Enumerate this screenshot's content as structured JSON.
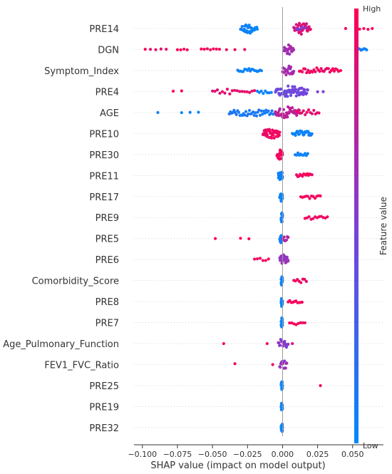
{
  "chart_data": {
    "type": "scatter",
    "subtype": "shap-beeswarm",
    "title": "",
    "xlabel": "SHAP value (impact on model output)",
    "ylabel": "",
    "xlim": [
      -0.106,
      0.072
    ],
    "xticks": [
      -0.1,
      -0.075,
      -0.05,
      -0.025,
      0.0,
      0.025,
      0.05
    ],
    "xtick_labels": [
      "−0.100",
      "−0.075",
      "−0.050",
      "−0.025",
      "0.000",
      "0.025",
      "0.050"
    ],
    "grid": false,
    "features": [
      {
        "name": "PRE14",
        "clusters": [
          {
            "lo": -0.03,
            "hi": -0.018,
            "c": 0.05,
            "n": 32,
            "h": 7
          },
          {
            "lo": 0.008,
            "hi": 0.02,
            "c": 0.85,
            "n": 34,
            "h": 8
          },
          {
            "lo": 0.01,
            "hi": 0.016,
            "c": 0.55,
            "n": 6,
            "h": 4
          },
          {
            "lo": 0.044,
            "hi": 0.046,
            "c": 1.0,
            "n": 1,
            "h": 0
          },
          {
            "lo": 0.055,
            "hi": 0.064,
            "c": 1.0,
            "n": 4,
            "h": 2
          }
        ]
      },
      {
        "name": "DGN",
        "clusters": [
          {
            "lo": -0.098,
            "hi": -0.083,
            "c": 0.95,
            "n": 5,
            "h": 1
          },
          {
            "lo": -0.075,
            "hi": -0.068,
            "c": 1.0,
            "n": 4,
            "h": 1
          },
          {
            "lo": -0.058,
            "hi": -0.045,
            "c": 0.95,
            "n": 7,
            "h": 2
          },
          {
            "lo": -0.04,
            "hi": -0.034,
            "c": 0.95,
            "n": 2,
            "h": 1
          },
          {
            "lo": -0.028,
            "hi": -0.026,
            "c": 0.95,
            "n": 1,
            "h": 0
          },
          {
            "lo": 0.001,
            "hi": 0.008,
            "c": 0.65,
            "n": 22,
            "h": 7
          },
          {
            "lo": 0.053,
            "hi": 0.06,
            "c": 0.05,
            "n": 8,
            "h": 2
          }
        ]
      },
      {
        "name": "Symptom_Index",
        "clusters": [
          {
            "lo": -0.032,
            "hi": -0.015,
            "c": 0.05,
            "n": 18,
            "h": 3
          },
          {
            "lo": 0.0,
            "hi": 0.008,
            "c": 0.65,
            "n": 20,
            "h": 7
          },
          {
            "lo": 0.012,
            "hi": 0.04,
            "c": 0.95,
            "n": 28,
            "h": 4
          },
          {
            "lo": 0.04,
            "hi": 0.043,
            "c": 1.0,
            "n": 1,
            "h": 0
          }
        ]
      },
      {
        "name": "PRE4",
        "clusters": [
          {
            "lo": -0.078,
            "hi": -0.072,
            "c": 1.0,
            "n": 2,
            "h": 2
          },
          {
            "lo": -0.05,
            "hi": -0.02,
            "c": 0.9,
            "n": 18,
            "h": 4
          },
          {
            "lo": -0.018,
            "hi": -0.008,
            "c": 0.05,
            "n": 8,
            "h": 3
          },
          {
            "lo": -0.005,
            "hi": 0.018,
            "c": 0.45,
            "n": 60,
            "h": 8
          },
          {
            "lo": 0.025,
            "hi": 0.029,
            "c": 0.55,
            "n": 2,
            "h": 1
          }
        ]
      },
      {
        "name": "AGE",
        "clusters": [
          {
            "lo": -0.09,
            "hi": -0.088,
            "c": 0.05,
            "n": 1,
            "h": 0
          },
          {
            "lo": -0.072,
            "hi": -0.06,
            "c": 0.05,
            "n": 3,
            "h": 2
          },
          {
            "lo": -0.038,
            "hi": -0.005,
            "c": 0.1,
            "n": 40,
            "h": 5
          },
          {
            "lo": -0.005,
            "hi": 0.012,
            "c": 0.75,
            "n": 45,
            "h": 8
          },
          {
            "lo": 0.01,
            "hi": 0.026,
            "c": 0.9,
            "n": 14,
            "h": 4
          }
        ]
      },
      {
        "name": "PRE10",
        "clusters": [
          {
            "lo": -0.014,
            "hi": -0.002,
            "c": 0.95,
            "n": 40,
            "h": 7
          },
          {
            "lo": 0.007,
            "hi": 0.021,
            "c": 0.05,
            "n": 26,
            "h": 4
          }
        ]
      },
      {
        "name": "PRE30",
        "clusters": [
          {
            "lo": -0.004,
            "hi": 0.0,
            "c": 0.95,
            "n": 26,
            "h": 7
          },
          {
            "lo": 0.009,
            "hi": 0.018,
            "c": 0.05,
            "n": 10,
            "h": 3
          }
        ]
      },
      {
        "name": "PRE11",
        "clusters": [
          {
            "lo": -0.003,
            "hi": 0.0,
            "c": 0.05,
            "n": 26,
            "h": 7
          },
          {
            "lo": 0.01,
            "hi": 0.021,
            "c": 0.95,
            "n": 14,
            "h": 3
          }
        ]
      },
      {
        "name": "PRE17",
        "clusters": [
          {
            "lo": -0.002,
            "hi": 0.0,
            "c": 0.05,
            "n": 20,
            "h": 7
          },
          {
            "lo": 0.013,
            "hi": 0.027,
            "c": 0.95,
            "n": 12,
            "h": 3
          }
        ]
      },
      {
        "name": "PRE9",
        "clusters": [
          {
            "lo": -0.001,
            "hi": 0.0,
            "c": 0.05,
            "n": 20,
            "h": 7
          },
          {
            "lo": 0.016,
            "hi": 0.032,
            "c": 0.95,
            "n": 12,
            "h": 3
          }
        ]
      },
      {
        "name": "PRE5",
        "clusters": [
          {
            "lo": -0.049,
            "hi": -0.047,
            "c": 1.0,
            "n": 1,
            "h": 0
          },
          {
            "lo": -0.03,
            "hi": -0.024,
            "c": 1.0,
            "n": 2,
            "h": 1
          },
          {
            "lo": -0.002,
            "hi": 0.0,
            "c": 0.05,
            "n": 16,
            "h": 7
          },
          {
            "lo": 0.0,
            "hi": 0.004,
            "c": 0.7,
            "n": 8,
            "h": 4
          }
        ]
      },
      {
        "name": "PRE6",
        "clusters": [
          {
            "lo": -0.02,
            "hi": -0.01,
            "c": 0.95,
            "n": 6,
            "h": 2
          },
          {
            "lo": -0.002,
            "hi": 0.004,
            "c": 0.6,
            "n": 24,
            "h": 7
          }
        ]
      },
      {
        "name": "Comorbidity_Score",
        "clusters": [
          {
            "lo": -0.001,
            "hi": 0.0,
            "c": 0.05,
            "n": 18,
            "h": 7
          },
          {
            "lo": 0.008,
            "hi": 0.017,
            "c": 0.95,
            "n": 8,
            "h": 3
          }
        ]
      },
      {
        "name": "PRE8",
        "clusters": [
          {
            "lo": -0.001,
            "hi": 0.0,
            "c": 0.05,
            "n": 18,
            "h": 7
          },
          {
            "lo": 0.004,
            "hi": 0.014,
            "c": 0.95,
            "n": 10,
            "h": 3
          }
        ]
      },
      {
        "name": "PRE7",
        "clusters": [
          {
            "lo": -0.001,
            "hi": 0.0,
            "c": 0.05,
            "n": 18,
            "h": 7
          },
          {
            "lo": 0.005,
            "hi": 0.016,
            "c": 0.95,
            "n": 8,
            "h": 3
          }
        ]
      },
      {
        "name": "Age_Pulmonary_Function",
        "clusters": [
          {
            "lo": -0.043,
            "hi": -0.041,
            "c": 0.95,
            "n": 1,
            "h": 0
          },
          {
            "lo": -0.012,
            "hi": -0.01,
            "c": 0.95,
            "n": 1,
            "h": 0
          },
          {
            "lo": -0.003,
            "hi": 0.004,
            "c": 0.55,
            "n": 18,
            "h": 7
          },
          {
            "lo": 0.006,
            "hi": 0.008,
            "c": 0.95,
            "n": 1,
            "h": 0
          }
        ]
      },
      {
        "name": "FEV1_FVC_Ratio",
        "clusters": [
          {
            "lo": -0.035,
            "hi": -0.033,
            "c": 0.95,
            "n": 1,
            "h": 2
          },
          {
            "lo": -0.008,
            "hi": -0.006,
            "c": 0.95,
            "n": 1,
            "h": 0
          },
          {
            "lo": -0.002,
            "hi": 0.003,
            "c": 0.6,
            "n": 14,
            "h": 7
          }
        ]
      },
      {
        "name": "PRE25",
        "clusters": [
          {
            "lo": -0.001,
            "hi": 0.0,
            "c": 0.05,
            "n": 16,
            "h": 7
          },
          {
            "lo": 0.026,
            "hi": 0.028,
            "c": 1.0,
            "n": 1,
            "h": 0
          }
        ]
      },
      {
        "name": "PRE19",
        "clusters": [
          {
            "lo": -0.001,
            "hi": 0.0,
            "c": 0.05,
            "n": 16,
            "h": 7
          }
        ]
      },
      {
        "name": "PRE32",
        "clusters": [
          {
            "lo": -0.001,
            "hi": 0.0,
            "c": 0.05,
            "n": 16,
            "h": 7
          }
        ]
      }
    ],
    "colorbar": {
      "label": "Feature value",
      "high": "High",
      "low": "Low",
      "low_color": "#008afb",
      "mid_color": "#7c3fd8",
      "high_color": "#ff0052"
    }
  }
}
